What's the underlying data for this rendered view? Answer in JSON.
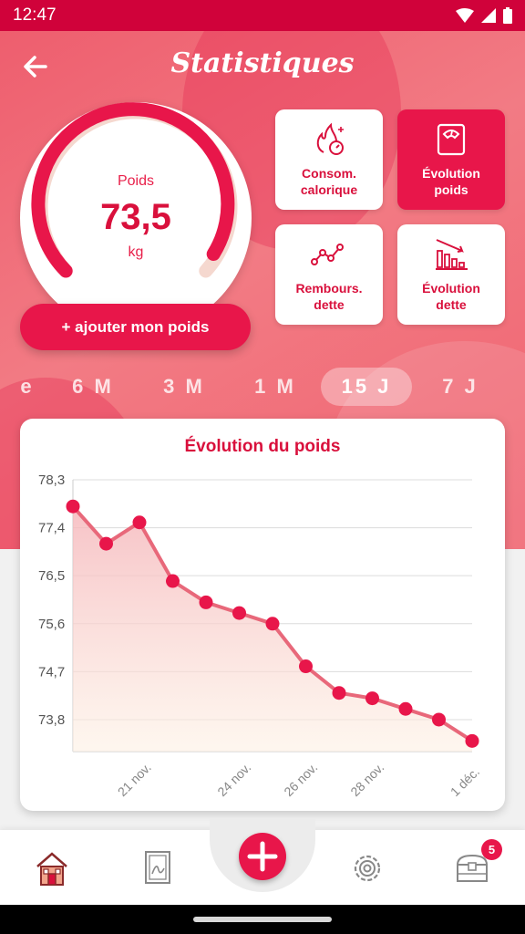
{
  "status": {
    "time": "12:47"
  },
  "header": {
    "title": "Statistiques"
  },
  "gauge": {
    "label": "Poids",
    "value": "73,5",
    "unit": "kg"
  },
  "add_weight_button": "+ ajouter mon poids",
  "tiles": [
    {
      "label": "Consom.\ncalorique",
      "icon": "calorie-flame-icon",
      "active": false
    },
    {
      "label": "Évolution\npoids",
      "icon": "scale-icon",
      "active": true
    },
    {
      "label": "Rembours.\ndette",
      "icon": "line-trend-icon",
      "active": false
    },
    {
      "label": "Évolution\ndette",
      "icon": "bar-decline-icon",
      "active": false
    }
  ],
  "periods": [
    {
      "label": "e",
      "selected": false
    },
    {
      "label": "6 M",
      "selected": false
    },
    {
      "label": "3 M",
      "selected": false
    },
    {
      "label": "1 M",
      "selected": false
    },
    {
      "label": "15 J",
      "selected": true
    },
    {
      "label": "7 J",
      "selected": false
    }
  ],
  "chart_data": {
    "type": "line",
    "title": "Évolution du poids",
    "ylim": [
      73.2,
      78.3
    ],
    "y_ticks": [
      "78,3",
      "77,4",
      "76,5",
      "75,6",
      "74,7",
      "73,8"
    ],
    "y_tick_values": [
      78.3,
      77.4,
      76.5,
      75.6,
      74.7,
      73.8
    ],
    "x_ticks": [
      "21 nov.",
      "24 nov.",
      "26 nov.",
      "28 nov.",
      "1 déc."
    ],
    "x_tick_index": [
      2,
      5,
      7,
      9,
      12
    ],
    "values": [
      77.8,
      77.1,
      77.5,
      76.4,
      76.0,
      75.8,
      75.6,
      74.8,
      74.3,
      74.2,
      74.0,
      73.8,
      73.4
    ],
    "grid": true,
    "colors": {
      "line": "#e8687a",
      "point": "#e8164a"
    }
  },
  "bottom_nav": {
    "badge_count": "5"
  },
  "colors": {
    "primary": "#e8164a",
    "status_bar": "#d0023a"
  }
}
